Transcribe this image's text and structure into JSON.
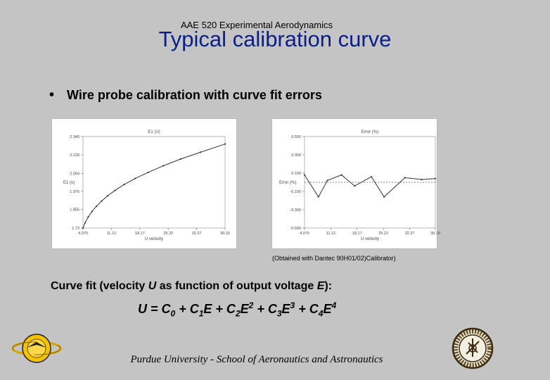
{
  "header": {
    "course": "AAE 520 Experimental Aerodynamics",
    "title": "Typical calibration curve"
  },
  "bullet": {
    "glyph": "•",
    "text": "Wire probe calibration with curve fit errors"
  },
  "source_note": "(Obtained with Dantec 90H01/02)Calibrator)",
  "fit_description": {
    "prefix": "Curve fit (velocity ",
    "var_u": "U",
    "middle": " as function of output voltage ",
    "var_e": "E",
    "suffix": "):"
  },
  "equation": {
    "parts": [
      {
        "t": "U = C"
      },
      {
        "sub": "0"
      },
      {
        "t": " + C"
      },
      {
        "sub": "1"
      },
      {
        "t": "E + C"
      },
      {
        "sub": "2"
      },
      {
        "t": "E"
      },
      {
        "sup": "2"
      },
      {
        "t": " + C"
      },
      {
        "sub": "3"
      },
      {
        "t": "E"
      },
      {
        "sup": "3"
      },
      {
        "t": " + C"
      },
      {
        "sub": "4"
      },
      {
        "t": "E"
      },
      {
        "sup": "4"
      }
    ]
  },
  "footer": "Purdue University - School of Aeronautics and Astronautics",
  "logos": {
    "left": {
      "icon": "aeronautics-emblem-icon"
    },
    "right": {
      "icon": "purdue-seal-icon"
    }
  },
  "colors": {
    "title": "#0b1f8a",
    "background": "#c4c4c4",
    "plot_line": "#333333"
  },
  "chart_data": [
    {
      "type": "line",
      "title": "E1 (U)",
      "xlabel": "U velocity",
      "ylabel": "E1 (u)",
      "x_tick_labels": [
        "4.075",
        "11.12",
        "18.17",
        "25.22",
        "32.27",
        "39.32"
      ],
      "y_tick_labels": [
        "1.73",
        "1.855",
        "1.975",
        "2.094",
        "2.218",
        "2.340"
      ],
      "x_ticks": [
        4.075,
        11.12,
        18.17,
        25.22,
        32.27,
        39.32
      ],
      "y_ticks": [
        1.73,
        1.855,
        1.975,
        2.094,
        2.218,
        2.34
      ],
      "xlim": [
        4.075,
        39.32
      ],
      "ylim": [
        1.73,
        2.34
      ],
      "grid": false,
      "x": [
        4.075,
        4.6,
        5.4,
        6.3,
        7.4,
        8.7,
        10.2,
        12.0,
        14.3,
        17.0,
        20.2,
        24.0,
        28.3,
        33.2,
        39.32
      ],
      "y": [
        1.73,
        1.765,
        1.805,
        1.84,
        1.875,
        1.91,
        1.945,
        1.98,
        2.02,
        2.06,
        2.1,
        2.145,
        2.19,
        2.235,
        2.29
      ]
    },
    {
      "type": "line",
      "title": "Error (%)",
      "xlabel": "U velocity",
      "ylabel": "Error (%)",
      "x_tick_labels": [
        "4.075",
        "11.12",
        "18.17",
        "25.22",
        "32.27",
        "39.15"
      ],
      "y_tick_labels": [
        "0.500",
        "0.300",
        "0.100",
        "-0.100",
        "-0.300",
        "-0.500"
      ],
      "x_ticks": [
        4.075,
        11.12,
        18.17,
        25.22,
        32.27,
        39.15
      ],
      "y_ticks": [
        0.5,
        0.3,
        0.1,
        -0.1,
        -0.3,
        -0.5
      ],
      "xlim": [
        4.075,
        39.15
      ],
      "ylim": [
        -0.5,
        0.5
      ],
      "reference_line_y": 0.0,
      "grid": false,
      "x": [
        4.075,
        7.8,
        10.2,
        14.0,
        17.5,
        22.0,
        25.4,
        31.0,
        35.5,
        39.15
      ],
      "y": [
        0.08,
        -0.16,
        0.02,
        0.08,
        -0.04,
        0.06,
        -0.16,
        0.05,
        0.03,
        0.04
      ]
    }
  ]
}
